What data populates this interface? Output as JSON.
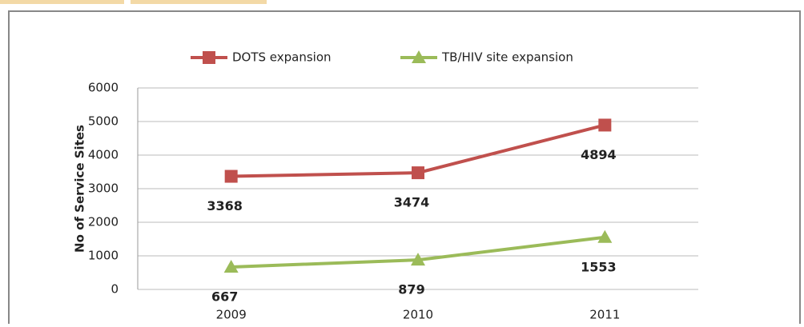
{
  "chart_data": {
    "type": "line",
    "y_label": "No of Service Sites",
    "categories": [
      "2009",
      "2010",
      "2011"
    ],
    "series": [
      {
        "name": "DOTS expansion",
        "color": "#c0504d",
        "marker": "square",
        "values": [
          3368,
          3474,
          4894
        ]
      },
      {
        "name": "TB/HIV site expansion",
        "color": "#9bbb59",
        "marker": "triangle",
        "values": [
          667,
          879,
          1553
        ]
      }
    ],
    "ylim": [
      0,
      6000
    ],
    "yticks": [
      0,
      1000,
      2000,
      3000,
      4000,
      5000,
      6000
    ],
    "grid": true,
    "legend": "top"
  }
}
